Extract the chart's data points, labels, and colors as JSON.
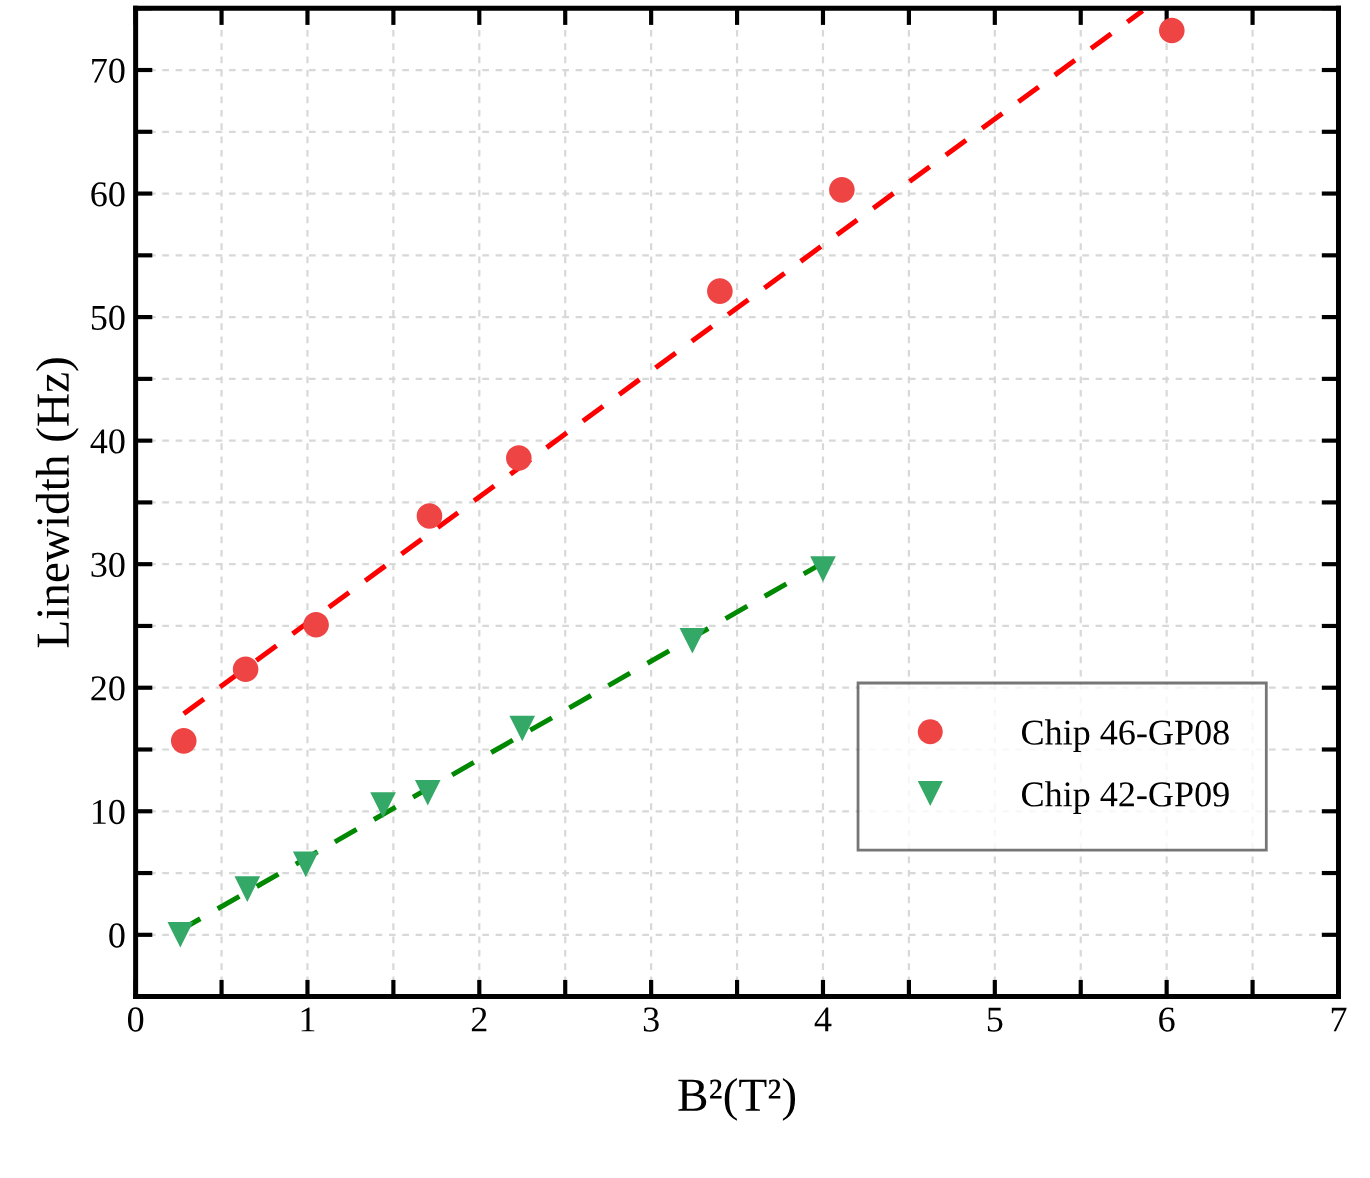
{
  "chart_data": {
    "type": "scatter",
    "xlabel": "B²(T²)",
    "ylabel": "Linewidth (Hz)",
    "xlim": [
      0,
      7
    ],
    "ylim": [
      -5,
      75
    ],
    "xticks": [
      0,
      {
        "value": 0.5,
        "label": null
      },
      1,
      {
        "value": 1.5,
        "label": null
      },
      2,
      {
        "value": 2.5,
        "label": null
      },
      3,
      {
        "value": 3.5,
        "label": null
      },
      4,
      {
        "value": 4.5,
        "label": null
      },
      5,
      {
        "value": 5.5,
        "label": null
      },
      6,
      {
        "value": 6.5,
        "label": null
      },
      7
    ],
    "yticks": [
      {
        "value": -5,
        "label": null
      },
      0,
      {
        "value": 5,
        "label": null
      },
      10,
      {
        "value": 15,
        "label": null
      },
      20,
      {
        "value": 25,
        "label": null
      },
      30,
      {
        "value": 35,
        "label": null
      },
      40,
      {
        "value": 45,
        "label": null
      },
      50,
      {
        "value": 55,
        "label": null
      },
      60,
      {
        "value": 65,
        "label": null
      },
      70,
      {
        "value": 75,
        "label": null
      }
    ],
    "grid": true,
    "legend": "bottom right",
    "series": [
      {
        "name": "Chip 46-GP08",
        "marker": "circle",
        "color": "#ef4444",
        "x": [
          0.28,
          0.64,
          1.05,
          1.71,
          2.23,
          3.4,
          4.11,
          6.03
        ],
        "values": [
          15.7,
          21.5,
          25.1,
          33.9,
          38.6,
          52.1,
          60.3,
          73.2
        ]
      },
      {
        "name": "Chip 42-GP09",
        "marker": "triangle",
        "color": "#33a867",
        "x": [
          0.26,
          0.65,
          0.99,
          1.44,
          1.7,
          2.25,
          3.24,
          4.0
        ],
        "values": [
          0.0,
          3.7,
          5.7,
          10.5,
          11.5,
          16.7,
          23.8,
          29.6
        ]
      },
      {
        "type": "line",
        "line_style": "dashed",
        "color": "#ff0000",
        "x": [
          0.28,
          5.86
        ],
        "values": [
          17.9,
          74.8
        ]
      },
      {
        "type": "line",
        "line_style": "dashed",
        "color": "#008800",
        "x": [
          0.25,
          4.0
        ],
        "values": [
          0.3,
          30.1
        ]
      }
    ]
  }
}
